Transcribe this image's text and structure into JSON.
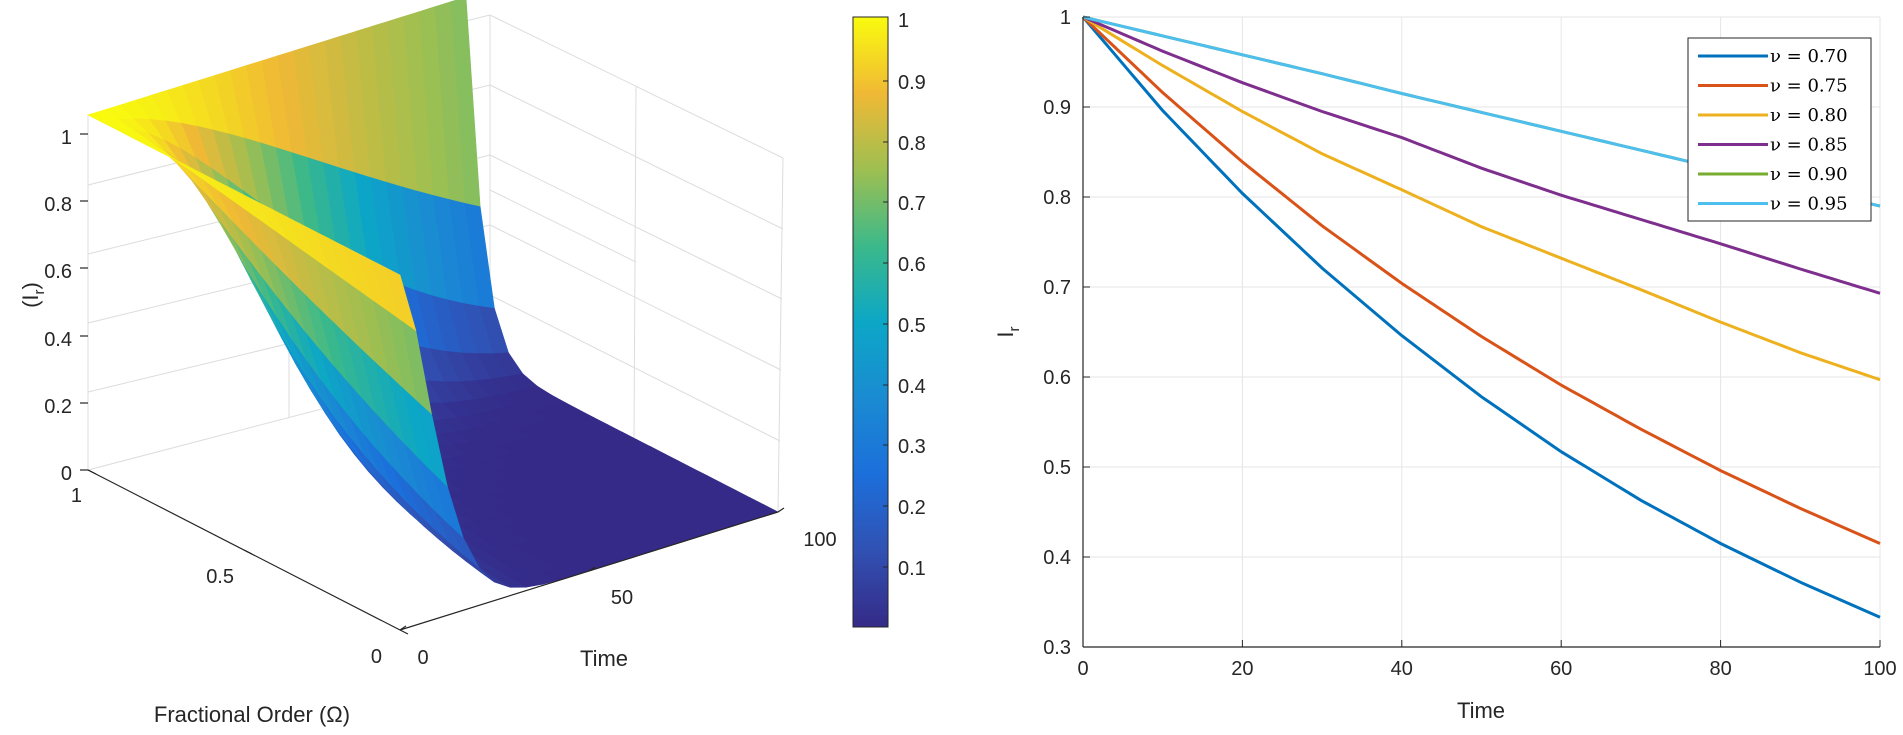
{
  "chart_data": [
    {
      "type": "surface",
      "xlabel": "Time",
      "ylabel": "Fractional Order (Ω)",
      "zlabel": "(I",
      "zlabel_sub": "r",
      "zlabel_close": ")",
      "x_range": [
        0,
        100
      ],
      "y_range": [
        0,
        1
      ],
      "z_range": [
        0,
        1
      ],
      "x_ticks": [
        "0",
        "50",
        "100"
      ],
      "y_ticks": [
        "0",
        "0.5",
        "1"
      ],
      "z_ticks": [
        "0",
        "0.2",
        "0.4",
        "0.6",
        "0.8",
        "1"
      ],
      "colorbar": {
        "colormap": "parula",
        "ticks": [
          "0.1",
          "0.2",
          "0.3",
          "0.4",
          "0.5",
          "0.6",
          "0.7",
          "0.8",
          "0.9",
          "1"
        ]
      }
    },
    {
      "type": "line",
      "xlabel": "Time",
      "ylabel": "I",
      "ylabel_sub": "r",
      "xlim": [
        0,
        100
      ],
      "ylim": [
        0.3,
        1
      ],
      "x_ticks": [
        "0",
        "20",
        "40",
        "60",
        "80",
        "100"
      ],
      "y_ticks": [
        "0.3",
        "0.4",
        "0.5",
        "0.6",
        "0.7",
        "0.8",
        "0.9",
        "1"
      ],
      "x": [
        0,
        10,
        20,
        30,
        40,
        50,
        60,
        70,
        80,
        90,
        100
      ],
      "series": [
        {
          "name": "ν = 0.70",
          "color": "#0072BD",
          "values": [
            1.0,
            0.896,
            0.804,
            0.721,
            0.646,
            0.578,
            0.517,
            0.463,
            0.415,
            0.372,
            0.333
          ]
        },
        {
          "name": "ν = 0.75",
          "color": "#D95319",
          "values": [
            1.0,
            0.916,
            0.839,
            0.768,
            0.704,
            0.645,
            0.591,
            0.542,
            0.496,
            0.454,
            0.415
          ]
        },
        {
          "name": "ν = 0.80",
          "color": "#EDB120",
          "values": [
            1.0,
            0.946,
            0.895,
            0.848,
            0.808,
            0.767,
            0.732,
            0.697,
            0.661,
            0.627,
            0.597
          ]
        },
        {
          "name": "ν = 0.85",
          "color": "#7E2F8E",
          "values": [
            1.0,
            0.962,
            0.927,
            0.895,
            0.866,
            0.832,
            0.802,
            0.775,
            0.748,
            0.72,
            0.693
          ]
        },
        {
          "name": "ν = 0.90",
          "color": "#77AC30",
          "values": [
            1.0,
            0.979,
            0.958,
            0.937,
            0.915,
            0.894,
            0.873,
            0.852,
            0.831,
            0.81,
            0.79
          ]
        },
        {
          "name": "ν = 0.95",
          "color": "#4DBEEE",
          "values": [
            1.0,
            0.979,
            0.958,
            0.937,
            0.915,
            0.894,
            0.873,
            0.852,
            0.831,
            0.81,
            0.79
          ]
        }
      ],
      "legend": "top-right",
      "grid": true
    }
  ]
}
